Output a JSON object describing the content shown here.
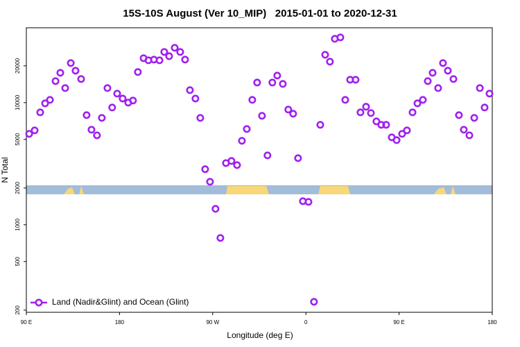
{
  "chart_data": {
    "type": "scatter",
    "title": "15S-10S August (Ver 10_MIP)   2015-01-01 to 2020-12-31",
    "x_label": "Longitude (deg E)",
    "y_label": "N Total",
    "x": [
      92.7,
      98,
      103.4,
      108.1,
      112.8,
      118.2,
      122.8,
      127.5,
      132.9,
      137.5,
      142.9,
      148.2,
      152.9,
      158.2,
      162.9,
      168.3,
      172.9,
      177.7,
      183,
      188.4,
      193,
      197.7,
      203.2,
      207.9,
      213.2,
      218.6,
      223.2,
      227.9,
      233.3,
      238.6,
      243.3,
      248,
      253.3,
      258,
      262.7,
      267.4,
      272.7,
      277.4,
      282.8,
      288.1,
      293.5,
      298.2,
      302.9,
      308.2,
      312.9,
      317.6,
      322.9,
      327.6,
      332.3,
      337.7,
      343,
      347.7,
      352.4,
      357.1,
      362.5,
      367.8,
      373.9,
      378.6,
      383.2,
      387.9,
      393.3,
      398,
      402.7,
      408,
      412.7,
      418.1,
      422.8,
      428.1,
      432.8,
      437.5,
      442.9,
      447.6,
      452.9,
      457.6,
      463,
      467.7,
      473,
      477.7,
      482.4,
      487.7,
      492.4,
      497.1,
      502.5,
      507.8,
      512.5,
      517.9,
      522.6,
      528,
      532.6,
      537.3
    ],
    "series": [
      {
        "name": "Land (Nadir&Glint) and Ocean (Glint)",
        "color": "#a020f0",
        "values": [
          5550,
          5925,
          8320,
          9860,
          10530,
          15000,
          17550,
          13150,
          21080,
          18250,
          15600,
          7900,
          6000,
          5400,
          7500,
          13150,
          9120,
          11850,
          10800,
          10000,
          10400,
          17800,
          23100,
          22200,
          22500,
          22200,
          26000,
          24000,
          28100,
          26000,
          22500,
          12650,
          10800,
          7500,
          2850,
          2250,
          1350,
          780,
          3200,
          3330,
          3080,
          4870,
          6080,
          10530,
          14600,
          7800,
          3700,
          14600,
          16650,
          14230,
          8770,
          8110,
          3510,
          1560,
          1540,
          234,
          6580,
          24650,
          21640,
          33300,
          34200,
          10530,
          15400,
          15400,
          8320,
          9250,
          8220,
          7020,
          6580,
          6580,
          5200,
          4930,
          5550,
          5925,
          8320,
          9860,
          10530,
          15000,
          17550,
          13150,
          21080,
          18250,
          15600,
          7900,
          6000,
          5400,
          7500,
          13150,
          9120,
          11850
        ]
      }
    ],
    "xlim": [
      90,
      540
    ],
    "xticks": [
      {
        "value": 90,
        "label": "90 E"
      },
      180,
      {
        "value": 270,
        "label": "90 W"
      },
      {
        "value": 360,
        "label": "0"
      },
      {
        "value": 450,
        "label": "90 E"
      },
      {
        "value": 540,
        "label": "180"
      }
    ],
    "ylim": [
      192,
      41000
    ],
    "yticks": [
      200,
      500,
      1000,
      2000,
      5000,
      10000,
      20000
    ],
    "y_log": true,
    "legend": "bottom-left"
  }
}
